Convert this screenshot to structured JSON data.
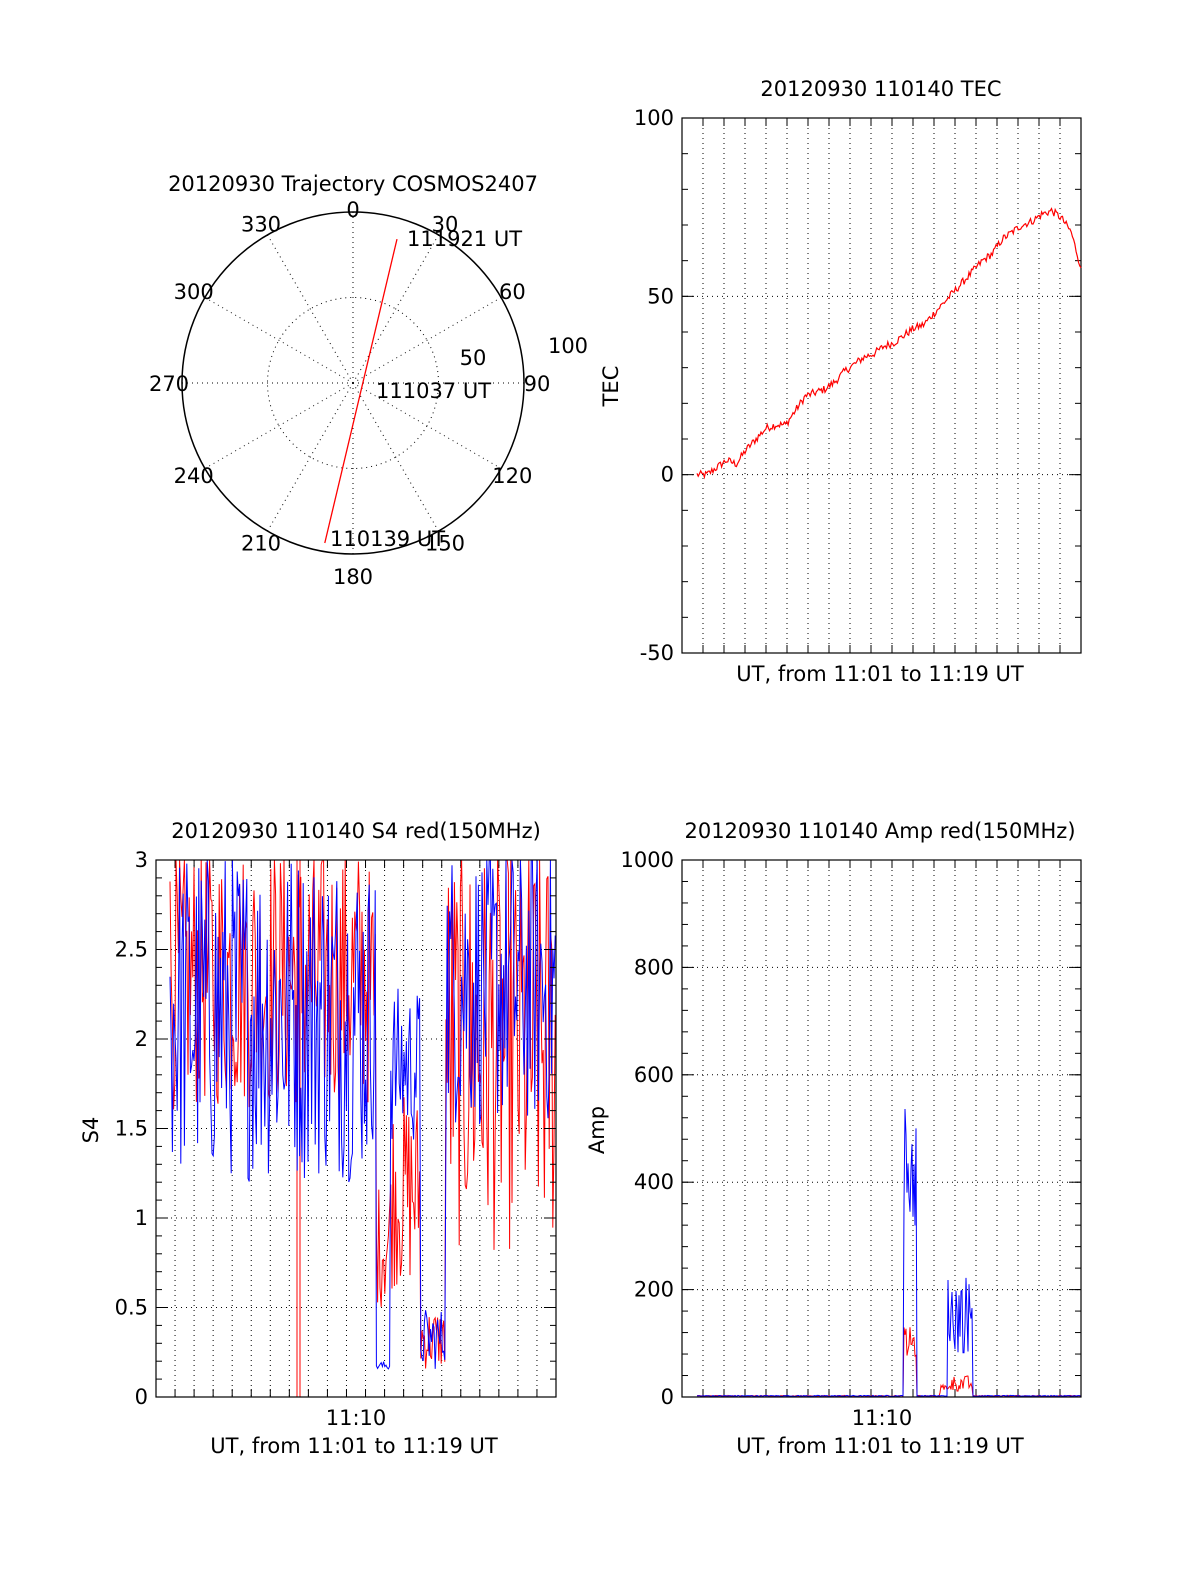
{
  "chart_data": [
    {
      "type": "polar",
      "title": "20120930 Trajectory COSMOS2407",
      "angle_labels": [
        "0",
        "30",
        "60",
        "90",
        "120",
        "150",
        "180",
        "210",
        "240",
        "270",
        "300",
        "330"
      ],
      "radial_labels": [
        "50",
        "100"
      ],
      "rlim": [
        0,
        100
      ],
      "grid": true,
      "series": [
        {
          "color": "#ff0000",
          "points": [
            {
              "azimuth": 190,
              "r": 95,
              "label": "110139 UT"
            },
            {
              "azimuth": 0,
              "r": 0
            },
            {
              "azimuth": 17,
              "r": 88,
              "label": "111921 UT"
            }
          ]
        }
      ],
      "annotations": [
        "110139 UT",
        "111037 UT",
        "111921 UT"
      ]
    },
    {
      "type": "line",
      "title": "20120930 110140 TEC",
      "xlabel": "UT, from 11:01 to 11:19 UT",
      "ylabel": "TEC",
      "ylim": [
        -50,
        100
      ],
      "yticks": [
        "-50",
        "0",
        "50",
        "100"
      ],
      "grid": true,
      "series": [
        {
          "color": "#ff0000",
          "x_minutes": [
            0,
            0.5,
            1,
            1.5,
            2,
            2.5,
            3,
            3.5,
            4,
            4.5,
            5,
            5.5,
            6,
            6.5,
            7,
            7.5,
            8,
            8.5,
            9,
            9.5,
            10,
            10.5,
            11,
            11.5,
            12,
            12.5,
            13,
            13.5,
            14,
            14.5,
            15,
            15.5,
            16,
            16.5,
            17,
            17.5,
            18,
            18.5,
            19,
            19.5
          ],
          "values": [
            0,
            0,
            2,
            4,
            3,
            7,
            10,
            13,
            14,
            14,
            18,
            22,
            23,
            24,
            26,
            29,
            31,
            33,
            34,
            36,
            37,
            39,
            41,
            42,
            45,
            48,
            51,
            54,
            57,
            60,
            62,
            66,
            68,
            70,
            71,
            73,
            74,
            72,
            68,
            58
          ]
        }
      ]
    },
    {
      "type": "line",
      "title": "20120930 110140 S4 red(150MHz)",
      "xlabel": "UT, from 11:01 to 11:19 UT",
      "ylabel": "S4",
      "xtick_labels": [
        "11:10"
      ],
      "ylim": [
        0,
        3
      ],
      "yticks": [
        "0",
        "0.5",
        "1",
        "1.5",
        "2",
        "2.5",
        "3"
      ],
      "grid": true,
      "series": [
        {
          "color": "#ff0000",
          "description_values": "noisy scintillation index"
        },
        {
          "color": "#0000ff",
          "description_values": "noisy scintillation index"
        }
      ]
    },
    {
      "type": "line",
      "title": "20120930 110140 Amp red(150MHz)",
      "xlabel": "UT, from 11:01 to 11:19 UT",
      "ylabel": "Amp",
      "xtick_labels": [
        "11:10"
      ],
      "ylim": [
        0,
        1000
      ],
      "yticks": [
        "0",
        "200",
        "400",
        "600",
        "800",
        "1000"
      ],
      "grid": true,
      "series": [
        {
          "color": "#ff0000"
        },
        {
          "color": "#0000ff"
        }
      ]
    }
  ]
}
